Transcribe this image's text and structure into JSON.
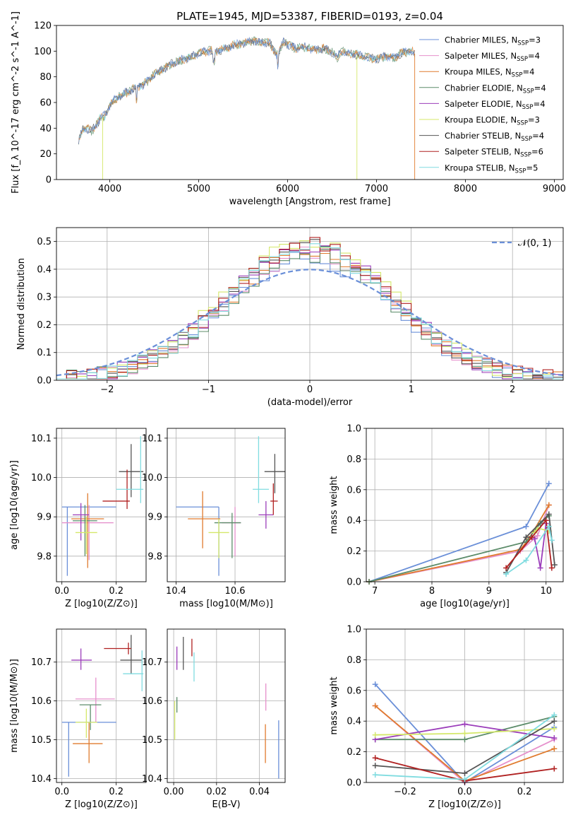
{
  "colors": {
    "series": [
      "#6a8fd8",
      "#e690cc",
      "#e07b2e",
      "#5c8c6a",
      "#9b3dba",
      "#d4e86a",
      "#555555",
      "#b02020",
      "#80dce0"
    ],
    "gaussian": "#6a8fd8",
    "grid": "#b0b0b0"
  },
  "legend": {
    "series": [
      {
        "name": "Chabrier MILES",
        "n": "3"
      },
      {
        "name": "Salpeter MILES",
        "n": "4"
      },
      {
        "name": "Kroupa MILES",
        "n": "4"
      },
      {
        "name": "Chabrier ELODIE",
        "n": "4"
      },
      {
        "name": "Salpeter ELODIE",
        "n": "4"
      },
      {
        "name": "Kroupa ELODIE",
        "n": "3"
      },
      {
        "name": "Chabrier STELIB",
        "n": "4"
      },
      {
        "name": "Salpeter STELIB",
        "n": "6"
      },
      {
        "name": "Kroupa STELIB",
        "n": "5"
      }
    ],
    "nssp_prefix": "N",
    "nssp_sub": "SSP",
    "gaussian_label": "𝒩(0, 1)"
  },
  "chart_data": [
    {
      "id": "spectrum",
      "type": "line",
      "title": "PLATE=1945, MJD=53387, FIBERID=0193, z=0.04",
      "xlabel": "wavelength [Angstrom, rest frame]",
      "ylabel": "Flux [f_λ 10^-17 erg cm^-2 s^-1 A^-1]",
      "xlim": [
        3400,
        9100
      ],
      "ylim": [
        0,
        120
      ],
      "xticks": [
        "4000",
        "5000",
        "6000",
        "7000",
        "8000",
        "9000"
      ],
      "yticks": [
        "0",
        "20",
        "40",
        "60",
        "80",
        "100",
        "120"
      ],
      "grid": false,
      "legend_placement": "top-right",
      "x": [
        3650,
        3700,
        3800,
        3900,
        3950,
        4000,
        4100,
        4200,
        4300,
        4400,
        4500,
        4600,
        4700,
        4800,
        4900,
        5000,
        5100,
        5200,
        5300,
        5400,
        5500,
        5600,
        5700,
        5800,
        5890,
        5950,
        6000,
        6100,
        6200,
        6300,
        6400,
        6500,
        6560,
        6600,
        6700,
        6800,
        6900,
        7000,
        7100,
        7200,
        7300,
        7400,
        7430
      ],
      "y": [
        30,
        40,
        38,
        48,
        50,
        58,
        65,
        68,
        72,
        75,
        82,
        86,
        90,
        93,
        95,
        98,
        100,
        100,
        102,
        105,
        106,
        108,
        107,
        106,
        96,
        108,
        105,
        102,
        103,
        101,
        102,
        99,
        95,
        100,
        98,
        97,
        95,
        94,
        96,
        95,
        99,
        100,
        98
      ],
      "dropouts": [
        {
          "series": "Kroupa ELODIE",
          "x": 3920
        },
        {
          "series": "Kroupa ELODIE",
          "x": 6780
        },
        {
          "series": "Kroupa MILES",
          "x": 7430
        }
      ]
    },
    {
      "id": "residuals",
      "type": "bar",
      "xlabel": "(data-model)/error",
      "ylabel": "Normed distribution",
      "xlim": [
        -2.5,
        2.5
      ],
      "ylim": [
        0,
        0.55
      ],
      "xticks": [
        "−2",
        "−1",
        "0",
        "1",
        "2"
      ],
      "yticks": [
        "0.0",
        "0.1",
        "0.2",
        "0.3",
        "0.4",
        "0.5"
      ],
      "grid": true,
      "legend_placement": "top-right",
      "bin_width": 0.1,
      "peak_values": [
        0.44,
        0.46,
        0.47,
        0.45,
        0.49,
        0.51,
        0.48,
        0.49,
        0.47
      ],
      "gaussian": {
        "mean": 0,
        "sigma": 1
      }
    },
    {
      "id": "age-vs-Z",
      "type": "scatter",
      "xlabel": "Z [log10(Z/Z⊙)]",
      "ylabel": "age [log10(age/yr)]",
      "xlim": [
        -0.02,
        0.31
      ],
      "ylim": [
        9.735,
        10.125
      ],
      "xticks": [
        "0.0",
        "0.2"
      ],
      "yticks": [
        "9.8",
        "9.9",
        "10.0",
        "10.1"
      ],
      "grid": true,
      "points": [
        {
          "x": 0.02,
          "y": 9.925,
          "xerr": [
            0.0,
            0.2
          ],
          "yerr": [
            9.75,
            9.925
          ]
        },
        {
          "x": 0.1,
          "y": 9.885,
          "xerr": [
            0.0,
            0.19
          ],
          "yerr": [
            9.79,
            9.93
          ]
        },
        {
          "x": 0.095,
          "y": 9.895,
          "xerr": [
            0.035,
            0.155
          ],
          "yerr": [
            9.77,
            9.96
          ]
        },
        {
          "x": 0.085,
          "y": 9.89,
          "xerr": [
            0.04,
            0.13
          ],
          "yerr": [
            9.8,
            9.93
          ]
        },
        {
          "x": 0.07,
          "y": 9.905,
          "xerr": [
            0.04,
            0.1
          ],
          "yerr": [
            9.84,
            9.935
          ]
        },
        {
          "x": 0.09,
          "y": 9.86,
          "xerr": [
            0.05,
            0.13
          ],
          "yerr": [
            9.805,
            9.9
          ]
        },
        {
          "x": 0.255,
          "y": 10.015,
          "xerr": [
            0.21,
            0.3
          ],
          "yerr": [
            9.95,
            10.085
          ]
        },
        {
          "x": 0.24,
          "y": 9.94,
          "xerr": [
            0.15,
            0.25
          ],
          "yerr": [
            9.92,
            10.02
          ]
        },
        {
          "x": 0.29,
          "y": 9.97,
          "xerr": [
            0.2,
            0.3
          ],
          "yerr": [
            9.935,
            10.105
          ]
        }
      ]
    },
    {
      "id": "age-vs-mass",
      "type": "scatter",
      "xlabel": "mass [log10(M/M⊙)]",
      "ylabel": "",
      "xlim": [
        10.37,
        10.77
      ],
      "ylim": [
        9.735,
        10.125
      ],
      "xticks": [
        "10.4",
        "10.6"
      ],
      "yticks": [
        "9.8",
        "9.9",
        "10.0",
        "10.1"
      ],
      "grid": true,
      "points": [
        {
          "x": 10.545,
          "y": 9.925,
          "xerr": [
            10.4,
            10.545
          ],
          "yerr": [
            9.75,
            9.925
          ]
        },
        {
          "x": 10.6,
          "y": 9.885,
          "xerr": [
            10.555,
            10.62
          ],
          "yerr": [
            9.8,
            9.925
          ]
        },
        {
          "x": 10.49,
          "y": 9.895,
          "xerr": [
            10.44,
            10.55
          ],
          "yerr": [
            9.82,
            9.965
          ]
        },
        {
          "x": 10.59,
          "y": 9.885,
          "xerr": [
            10.53,
            10.62
          ],
          "yerr": [
            9.795,
            9.91
          ]
        },
        {
          "x": 10.705,
          "y": 9.905,
          "xerr": [
            10.68,
            10.73
          ],
          "yerr": [
            9.87,
            9.94
          ]
        },
        {
          "x": 10.545,
          "y": 9.86,
          "xerr": [
            10.51,
            10.58
          ],
          "yerr": [
            9.795,
            9.895
          ]
        },
        {
          "x": 10.735,
          "y": 10.015,
          "xerr": [
            10.7,
            10.77
          ],
          "yerr": [
            9.96,
            10.06
          ]
        },
        {
          "x": 10.73,
          "y": 9.94,
          "xerr": [
            10.72,
            10.745
          ],
          "yerr": [
            9.905,
            9.985
          ]
        },
        {
          "x": 10.68,
          "y": 9.97,
          "xerr": [
            10.66,
            10.715
          ],
          "yerr": [
            9.935,
            10.105
          ]
        }
      ]
    },
    {
      "id": "massweight-vs-age",
      "type": "line",
      "xlabel": "age [log10(age/yr)]",
      "ylabel": "mass weight",
      "xlim": [
        6.85,
        10.3
      ],
      "ylim": [
        0,
        1.0
      ],
      "xticks": [
        "7",
        "8",
        "9",
        "10"
      ],
      "yticks": [
        "0.0",
        "0.2",
        "0.4",
        "0.6",
        "0.8",
        "1.0"
      ],
      "grid": true,
      "series": [
        {
          "name": "Chabrier MILES",
          "x": [
            6.9,
            9.65,
            10.05
          ],
          "y": [
            0.0,
            0.36,
            0.64
          ]
        },
        {
          "name": "Salpeter MILES",
          "x": [
            6.9,
            9.55,
            9.85,
            10.05
          ],
          "y": [
            0.0,
            0.2,
            0.3,
            0.5
          ]
        },
        {
          "name": "Kroupa MILES",
          "x": [
            6.9,
            9.55,
            9.7,
            10.05
          ],
          "y": [
            0.0,
            0.21,
            0.28,
            0.5
          ]
        },
        {
          "name": "Chabrier ELODIE",
          "x": [
            6.9,
            9.65,
            9.9,
            10.05
          ],
          "y": [
            0.0,
            0.26,
            0.38,
            0.43
          ]
        },
        {
          "name": "Salpeter ELODIE",
          "x": [
            9.8,
            9.9,
            10.0
          ],
          "y": [
            0.28,
            0.09,
            0.38
          ]
        },
        {
          "name": "Kroupa ELODIE",
          "x": [
            9.8,
            9.85,
            10.05
          ],
          "y": [
            0.32,
            0.35,
            0.33
          ]
        },
        {
          "name": "Chabrier STELIB",
          "x": [
            9.3,
            9.65,
            10.05,
            10.15
          ],
          "y": [
            0.06,
            0.29,
            0.44,
            0.11
          ]
        },
        {
          "name": "Salpeter STELIB",
          "x": [
            9.3,
            9.75,
            10.0,
            10.1
          ],
          "y": [
            0.09,
            0.29,
            0.4,
            0.09
          ]
        },
        {
          "name": "Kroupa STELIB",
          "x": [
            9.3,
            9.65,
            10.05,
            10.1
          ],
          "y": [
            0.05,
            0.14,
            0.36,
            0.27
          ]
        }
      ]
    },
    {
      "id": "mass-vs-Z",
      "type": "scatter",
      "xlabel": "Z [log10(Z/Z⊙)]",
      "ylabel": "mass [log10(M/M⊙)]",
      "xlim": [
        -0.02,
        0.31
      ],
      "ylim": [
        10.39,
        10.785
      ],
      "xticks": [
        "0.0",
        "0.2"
      ],
      "yticks": [
        "10.4",
        "10.5",
        "10.6",
        "10.7"
      ],
      "grid": true,
      "points": [
        {
          "x": 0.025,
          "y": 10.545,
          "xerr": [
            0.0,
            0.2
          ],
          "yerr": [
            10.405,
            10.545
          ]
        },
        {
          "x": 0.125,
          "y": 10.605,
          "xerr": [
            0.05,
            0.195
          ],
          "yerr": [
            10.545,
            10.66
          ]
        },
        {
          "x": 0.1,
          "y": 10.49,
          "xerr": [
            0.04,
            0.15
          ],
          "yerr": [
            10.44,
            10.545
          ]
        },
        {
          "x": 0.105,
          "y": 10.59,
          "xerr": [
            0.065,
            0.145
          ],
          "yerr": [
            10.525,
            10.59
          ]
        },
        {
          "x": 0.07,
          "y": 10.705,
          "xerr": [
            0.035,
            0.11
          ],
          "yerr": [
            10.68,
            10.735
          ]
        },
        {
          "x": 0.09,
          "y": 10.545,
          "xerr": [
            0.05,
            0.13
          ],
          "yerr": [
            10.505,
            10.58
          ]
        },
        {
          "x": 0.255,
          "y": 10.705,
          "xerr": [
            0.215,
            0.295
          ],
          "yerr": [
            10.67,
            10.77
          ]
        },
        {
          "x": 0.245,
          "y": 10.735,
          "xerr": [
            0.155,
            0.255
          ],
          "yerr": [
            10.72,
            10.75
          ]
        },
        {
          "x": 0.295,
          "y": 10.67,
          "xerr": [
            0.225,
            0.3
          ],
          "yerr": [
            10.625,
            10.73
          ]
        }
      ]
    },
    {
      "id": "mass-vs-ebv",
      "type": "scatter",
      "xlabel": "E(B-V)",
      "ylabel": "",
      "xlim": [
        -0.003,
        0.052
      ],
      "ylim": [
        10.39,
        10.785
      ],
      "xticks": [
        "0.00",
        "0.02",
        "0.04"
      ],
      "yticks": [
        "10.4",
        "10.5",
        "10.6",
        "10.7"
      ],
      "grid": true,
      "points": [
        {
          "x": 0.049,
          "y": 10.545,
          "xerr": [
            0.049,
            0.049
          ],
          "yerr": [
            10.4,
            10.55
          ]
        },
        {
          "x": 0.043,
          "y": 10.605,
          "xerr": [
            0.043,
            0.043
          ],
          "yerr": [
            10.575,
            10.645
          ]
        },
        {
          "x": 0.0428,
          "y": 10.49,
          "xerr": [
            0.0428,
            0.0428
          ],
          "yerr": [
            10.44,
            10.54
          ]
        },
        {
          "x": 0.0015,
          "y": 10.59,
          "xerr": [
            0.0015,
            0.0015
          ],
          "yerr": [
            10.57,
            10.61
          ]
        },
        {
          "x": 0.0015,
          "y": 10.705,
          "xerr": [
            0.0015,
            0.0015
          ],
          "yerr": [
            10.68,
            10.74
          ]
        },
        {
          "x": 0.0005,
          "y": 10.545,
          "xerr": [
            0.0005,
            0.0005
          ],
          "yerr": [
            10.5,
            10.6
          ]
        },
        {
          "x": 0.0045,
          "y": 10.705,
          "xerr": [
            0.0045,
            0.0045
          ],
          "yerr": [
            10.68,
            10.765
          ]
        },
        {
          "x": 0.0085,
          "y": 10.735,
          "xerr": [
            0.0085,
            0.0085
          ],
          "yerr": [
            10.715,
            10.76
          ]
        },
        {
          "x": 0.0095,
          "y": 10.69,
          "xerr": [
            0.0095,
            0.0095
          ],
          "yerr": [
            10.65,
            10.725
          ]
        }
      ]
    },
    {
      "id": "massweight-vs-Z",
      "type": "line",
      "xlabel": "Z [log10(Z/Z⊙)]",
      "ylabel": "mass weight",
      "xlim": [
        -0.33,
        0.33
      ],
      "ylim": [
        0,
        1.0
      ],
      "xticks": [
        "−0.2",
        "0.0",
        "0.2"
      ],
      "yticks": [
        "0.0",
        "0.2",
        "0.4",
        "0.6",
        "0.8",
        "1.0"
      ],
      "grid": true,
      "series": [
        {
          "name": "Chabrier MILES",
          "x": [
            -0.3,
            0.0,
            0.3
          ],
          "y": [
            0.64,
            0.0,
            0.36
          ]
        },
        {
          "name": "Salpeter MILES",
          "x": [
            -0.3,
            0.0,
            0.3
          ],
          "y": [
            0.5,
            0.0,
            0.28
          ]
        },
        {
          "name": "Kroupa MILES",
          "x": [
            -0.3,
            0.0,
            0.3
          ],
          "y": [
            0.5,
            0.01,
            0.22
          ]
        },
        {
          "name": "Chabrier ELODIE",
          "x": [
            -0.3,
            0.0,
            0.3
          ],
          "y": [
            0.28,
            0.28,
            0.43
          ]
        },
        {
          "name": "Salpeter ELODIE",
          "x": [
            -0.3,
            0.0,
            0.3
          ],
          "y": [
            0.28,
            0.38,
            0.29
          ]
        },
        {
          "name": "Kroupa ELODIE",
          "x": [
            -0.3,
            0.0,
            0.3
          ],
          "y": [
            0.31,
            0.32,
            0.35
          ]
        },
        {
          "name": "Chabrier STELIB",
          "x": [
            -0.3,
            0.0,
            0.3
          ],
          "y": [
            0.11,
            0.06,
            0.4
          ]
        },
        {
          "name": "Salpeter STELIB",
          "x": [
            -0.3,
            0.0,
            0.3
          ],
          "y": [
            0.16,
            0.01,
            0.09
          ]
        },
        {
          "name": "Kroupa STELIB",
          "x": [
            -0.3,
            0.0,
            0.3
          ],
          "y": [
            0.05,
            0.02,
            0.44
          ]
        }
      ]
    }
  ]
}
